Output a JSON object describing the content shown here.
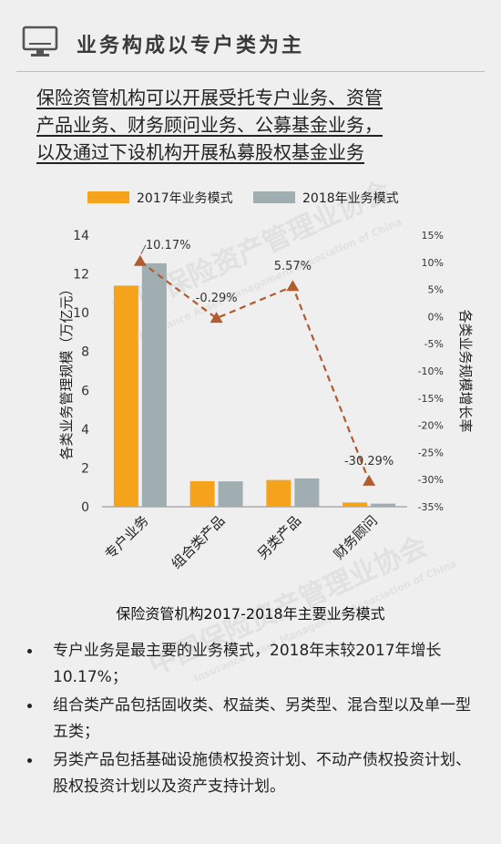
{
  "header": {
    "title": "业务构成以专户类为主",
    "icon": "monitor-icon"
  },
  "lead_lines": [
    "保险资管机构可以开展受托专户业务、资管",
    "产品业务、财务顾问业务、公募基金业务，",
    "以及通过下设机构开展私募股权基金业务"
  ],
  "chart_data": {
    "type": "bar",
    "title": "保险资管机构2017-2018年主要业务模式",
    "categories": [
      "专户业务",
      "组合类产品",
      "另类产品",
      "财务顾问"
    ],
    "series": [
      {
        "name": "2017年业务模式",
        "type": "bar",
        "axis": "left",
        "values": [
          11.4,
          1.32,
          1.38,
          0.22
        ],
        "color": "#f5a31c"
      },
      {
        "name": "2018年业务模式",
        "type": "bar",
        "axis": "left",
        "values": [
          12.55,
          1.31,
          1.46,
          0.16
        ],
        "color": "#a0adb1"
      },
      {
        "name": "",
        "type": "line",
        "axis": "right",
        "values": [
          10.17,
          -0.29,
          5.57,
          -30.29
        ],
        "labels": [
          "10.17%",
          "-0.29%",
          "5.57%",
          "-30.29%"
        ],
        "color": "#b15b30"
      }
    ],
    "ylabel": "各类业务管理规模（万亿元）",
    "ylim": [
      0,
      14
    ],
    "yticks": [
      "0",
      "2",
      "4",
      "6",
      "8",
      "10",
      "12",
      "14"
    ],
    "ylabel_right": "各类业务规模增长率",
    "ylim_right": [
      -35,
      15
    ],
    "yticks_right": [
      "-35%",
      "-30%",
      "-25%",
      "-20%",
      "-15%",
      "-10%",
      "-5%",
      "0%",
      "5%",
      "10%",
      "15%"
    ],
    "legend_position": "top-left",
    "grid": false
  },
  "bullets": [
    "专户业务是最主要的业务模式，2018年末较2017年增长10.17%；",
    "组合类产品包括固收类、权益类、另类型、混合型以及单一型五类；",
    "另类产品包括基础设施债权投资计划、不动产债权投资计划、股权投资计划以及资产支持计划。"
  ],
  "watermark": {
    "text_cn": "中国保险资产管理业协会",
    "text_en": "Insurance Asset Management Association of China"
  }
}
